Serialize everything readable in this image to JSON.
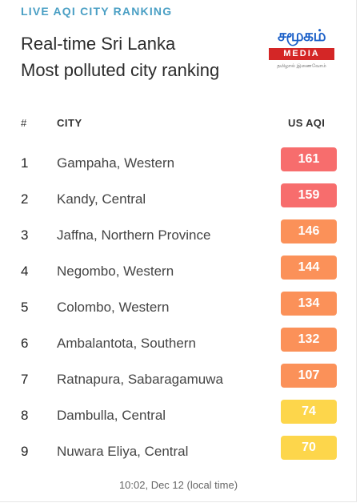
{
  "header": {
    "label": "LIVE AQI CITY RANKING",
    "title_line1": "Real-time Sri Lanka",
    "title_line2": "Most polluted city ranking"
  },
  "logo": {
    "name": "சமூகம்",
    "media": "MEDIA",
    "tagline": "தமிழால் இணைவோம்"
  },
  "columns": {
    "rank": "#",
    "city": "CITY",
    "aqi": "US AQI"
  },
  "rows": [
    {
      "rank": "1",
      "city": "Gampaha, Western",
      "aqi": "161",
      "color": "#f76d6d"
    },
    {
      "rank": "2",
      "city": "Kandy, Central",
      "aqi": "159",
      "color": "#f76d6d"
    },
    {
      "rank": "3",
      "city": "Jaffna, Northern Province",
      "aqi": "146",
      "color": "#fb9159"
    },
    {
      "rank": "4",
      "city": "Negombo, Western",
      "aqi": "144",
      "color": "#fb9159"
    },
    {
      "rank": "5",
      "city": "Colombo, Western",
      "aqi": "134",
      "color": "#fb9159"
    },
    {
      "rank": "6",
      "city": "Ambalantota, Southern",
      "aqi": "132",
      "color": "#fb9159"
    },
    {
      "rank": "7",
      "city": "Ratnapura, Sabaragamuwa",
      "aqi": "107",
      "color": "#fb9159"
    },
    {
      "rank": "8",
      "city": "Dambulla, Central",
      "aqi": "74",
      "color": "#fdd64b"
    },
    {
      "rank": "9",
      "city": "Nuwara Eliya, Central",
      "aqi": "70",
      "color": "#fdd64b"
    }
  ],
  "footer": {
    "timestamp": "10:02, Dec 12 (local time)"
  }
}
